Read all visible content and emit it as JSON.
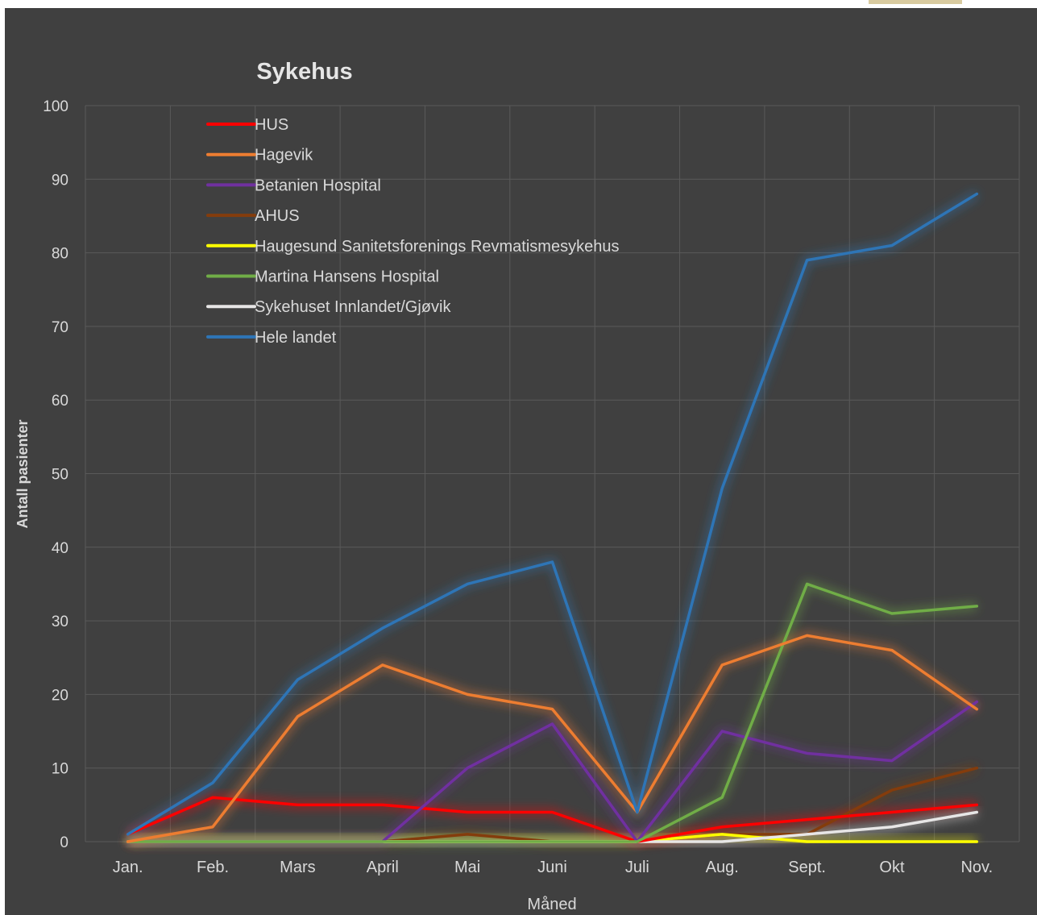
{
  "chart_data": {
    "type": "line",
    "title": "Sykehus",
    "xlabel": "Måned",
    "ylabel": "Antall pasienter",
    "ylim": [
      0,
      100
    ],
    "yticks": [
      0,
      10,
      20,
      30,
      40,
      50,
      60,
      70,
      80,
      90,
      100
    ],
    "grid": true,
    "legend_position": "top-left",
    "categories": [
      "Jan.",
      "Feb.",
      "Mars",
      "April",
      "Mai",
      "Juni",
      "Juli",
      "Aug.",
      "Sept.",
      "Okt",
      "Nov."
    ],
    "series": [
      {
        "name": "HUS",
        "color": "#ff0000",
        "values": [
          1,
          6,
          5,
          5,
          4,
          4,
          0,
          2,
          3,
          4,
          5
        ]
      },
      {
        "name": "Hagevik",
        "color": "#ed7d31",
        "values": [
          0,
          2,
          17,
          24,
          20,
          18,
          4,
          24,
          28,
          26,
          18
        ]
      },
      {
        "name": "Betanien Hospital",
        "color": "#7030a0",
        "values": [
          0,
          0,
          0,
          0,
          10,
          16,
          0,
          15,
          12,
          11,
          19
        ]
      },
      {
        "name": "AHUS",
        "color": "#843c0c",
        "values": [
          0,
          0,
          0,
          0,
          1,
          0,
          0,
          1,
          1,
          7,
          10
        ]
      },
      {
        "name": "Haugesund Sanitetsforenings Revmatismesykehus",
        "color": "#ffff00",
        "values": [
          0,
          0,
          0,
          0,
          0,
          0,
          0,
          1,
          0,
          0,
          0
        ]
      },
      {
        "name": "Martina Hansens Hospital",
        "color": "#70ad47",
        "values": [
          0,
          0,
          0,
          0,
          0,
          0,
          0,
          6,
          35,
          31,
          32
        ]
      },
      {
        "name": "Sykehuset Innlandet/Gjøvik",
        "color": "#e7e6e6",
        "values": [
          0,
          0,
          0,
          0,
          0,
          0,
          0,
          0,
          1,
          2,
          4
        ]
      },
      {
        "name": "Hele landet",
        "color": "#2e75b6",
        "values": [
          1,
          8,
          22,
          29,
          35,
          38,
          4,
          48,
          79,
          81,
          88
        ]
      }
    ]
  }
}
